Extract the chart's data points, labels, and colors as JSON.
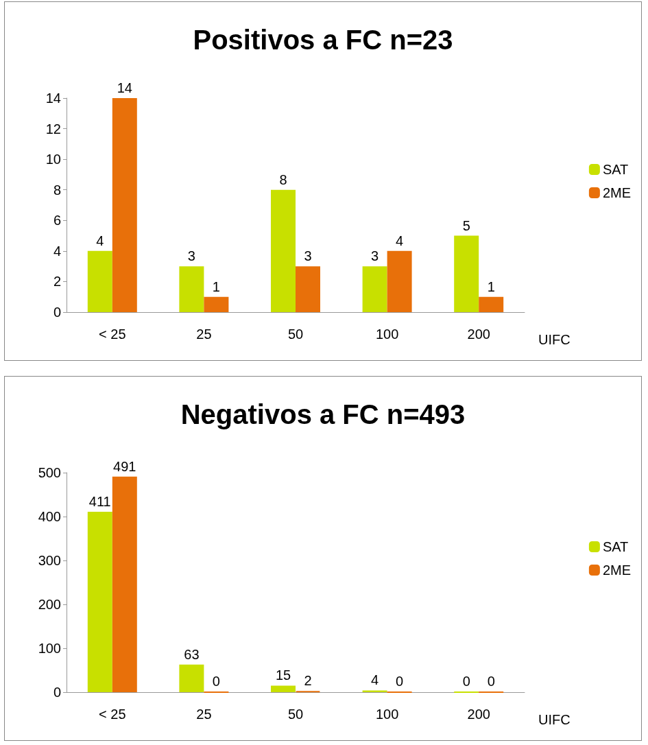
{
  "chart_data": [
    {
      "type": "bar",
      "title": "Positivos a FC n=23",
      "xlabel": "UIFC",
      "categories": [
        "< 25",
        "25",
        "50",
        "100",
        "200"
      ],
      "series": [
        {
          "name": "SAT",
          "color": "#c8e000",
          "values": [
            4,
            3,
            8,
            3,
            5
          ]
        },
        {
          "name": "2ME",
          "color": "#e8700a",
          "values": [
            14,
            1,
            3,
            4,
            1
          ]
        }
      ],
      "ylim": [
        0,
        14
      ],
      "yticks": [
        0,
        2,
        4,
        6,
        8,
        10,
        12,
        14
      ],
      "data_labels": true,
      "legend": "right",
      "grid": false
    },
    {
      "type": "bar",
      "title": "Negativos a FC n=493",
      "xlabel": "UIFC",
      "categories": [
        "< 25",
        "25",
        "50",
        "100",
        "200"
      ],
      "series": [
        {
          "name": "SAT",
          "color": "#c8e000",
          "values": [
            411,
            63,
            15,
            4,
            0
          ]
        },
        {
          "name": "2ME",
          "color": "#e8700a",
          "values": [
            491,
            0,
            2,
            0,
            0
          ]
        }
      ],
      "ylim": [
        0,
        500
      ],
      "yticks": [
        0,
        100,
        200,
        300,
        400,
        500
      ],
      "data_labels": true,
      "legend": "right",
      "grid": false
    }
  ]
}
